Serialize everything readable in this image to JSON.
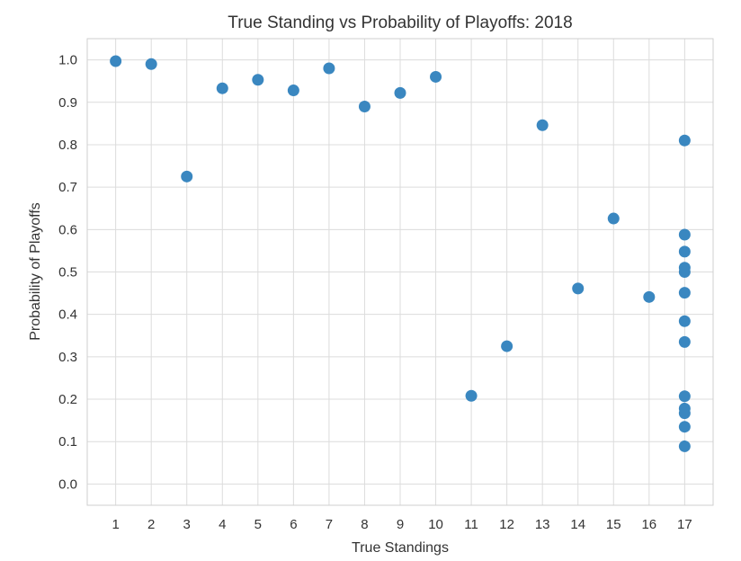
{
  "chart_data": {
    "type": "scatter",
    "title": "True Standing vs Probability of Playoffs: 2018",
    "xlabel": "True Standings",
    "ylabel": "Probability of Playoffs",
    "xlim": [
      0.2,
      17.8
    ],
    "ylim": [
      -0.05,
      1.05
    ],
    "x_ticks": [
      1,
      2,
      3,
      4,
      5,
      6,
      7,
      8,
      9,
      10,
      11,
      12,
      13,
      14,
      15,
      16,
      17
    ],
    "y_ticks": [
      0.0,
      0.1,
      0.2,
      0.3,
      0.4,
      0.5,
      0.6,
      0.7,
      0.8,
      0.9,
      1.0
    ],
    "y_tick_labels": [
      "0.0",
      "0.1",
      "0.2",
      "0.3",
      "0.4",
      "0.5",
      "0.6",
      "0.7",
      "0.8",
      "0.9",
      "1.0"
    ],
    "grid": true,
    "point_color": "#3a87c0",
    "points": [
      {
        "x": 1,
        "y": 0.997
      },
      {
        "x": 2,
        "y": 0.99
      },
      {
        "x": 3,
        "y": 0.725
      },
      {
        "x": 4,
        "y": 0.933
      },
      {
        "x": 5,
        "y": 0.953
      },
      {
        "x": 6,
        "y": 0.928
      },
      {
        "x": 7,
        "y": 0.98
      },
      {
        "x": 8,
        "y": 0.89
      },
      {
        "x": 9,
        "y": 0.922
      },
      {
        "x": 10,
        "y": 0.96
      },
      {
        "x": 11,
        "y": 0.208
      },
      {
        "x": 12,
        "y": 0.325
      },
      {
        "x": 13,
        "y": 0.846
      },
      {
        "x": 14,
        "y": 0.461
      },
      {
        "x": 15,
        "y": 0.626
      },
      {
        "x": 16,
        "y": 0.441
      },
      {
        "x": 17,
        "y": 0.81
      },
      {
        "x": 17,
        "y": 0.588
      },
      {
        "x": 17,
        "y": 0.548
      },
      {
        "x": 17,
        "y": 0.51
      },
      {
        "x": 17,
        "y": 0.5
      },
      {
        "x": 17,
        "y": 0.451
      },
      {
        "x": 17,
        "y": 0.384
      },
      {
        "x": 17,
        "y": 0.335
      },
      {
        "x": 17,
        "y": 0.207
      },
      {
        "x": 17,
        "y": 0.178
      },
      {
        "x": 17,
        "y": 0.167
      },
      {
        "x": 17,
        "y": 0.135
      },
      {
        "x": 17,
        "y": 0.089
      }
    ]
  }
}
